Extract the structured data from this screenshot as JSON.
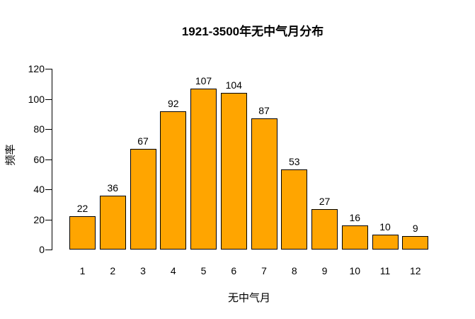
{
  "chart_data": {
    "type": "bar",
    "title": "1921-3500年无中气月分布",
    "xlabel": "无中气月",
    "ylabel": "频率",
    "categories": [
      "1",
      "2",
      "3",
      "4",
      "5",
      "6",
      "7",
      "8",
      "9",
      "10",
      "11",
      "12"
    ],
    "values": [
      22,
      36,
      67,
      92,
      107,
      104,
      87,
      53,
      27,
      16,
      10,
      9
    ],
    "ylim": [
      0,
      120
    ],
    "yticks": [
      0,
      20,
      40,
      60,
      80,
      100,
      120
    ],
    "grid": "off",
    "legend": "none",
    "bar_color": "#FFA500",
    "bar_border_color": "#000000",
    "text_color": "#000000",
    "background_color": "#FFFFFF"
  }
}
